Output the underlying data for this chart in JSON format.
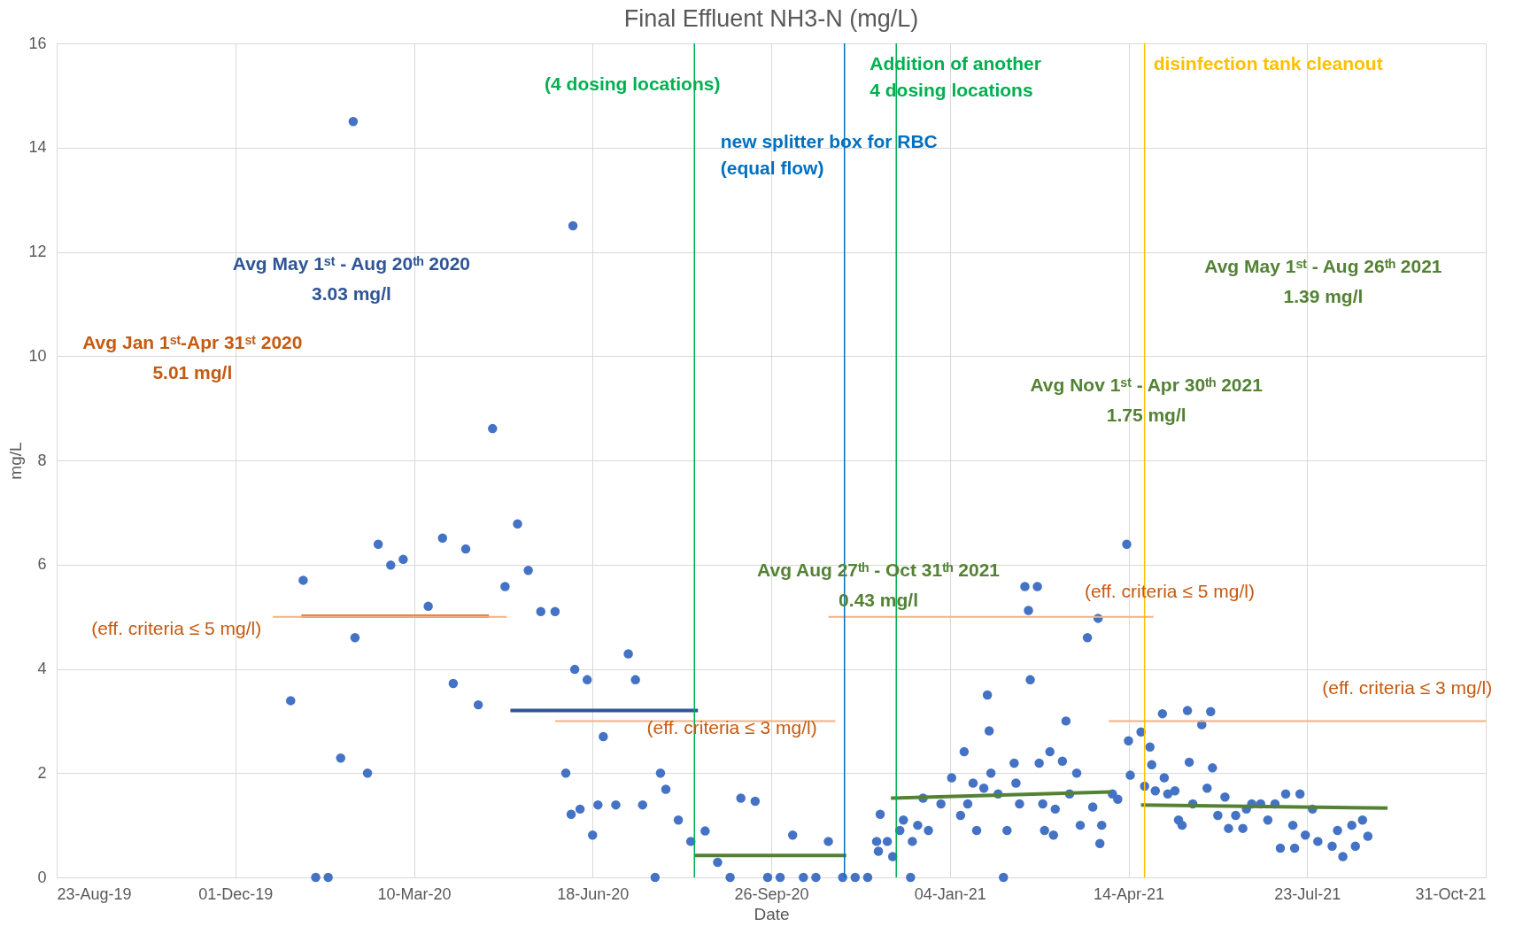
{
  "chart_data": {
    "type": "scatter",
    "title": "Final Effluent NH3-N (mg/L)",
    "xlabel": "Date",
    "ylabel": "mg/L",
    "xlim": [
      "2019-08-23",
      "2021-10-31"
    ],
    "xticks": [
      {
        "value": "2019-08-23",
        "label": "23-Aug-19"
      },
      {
        "value": "2019-12-01",
        "label": "01-Dec-19"
      },
      {
        "value": "2020-03-10",
        "label": "10-Mar-20"
      },
      {
        "value": "2020-06-18",
        "label": "18-Jun-20"
      },
      {
        "value": "2020-09-26",
        "label": "26-Sep-20"
      },
      {
        "value": "2021-01-04",
        "label": "04-Jan-21"
      },
      {
        "value": "2021-04-14",
        "label": "14-Apr-21"
      },
      {
        "value": "2021-07-23",
        "label": "23-Jul-21"
      },
      {
        "value": "2021-10-31",
        "label": "31-Oct-21"
      }
    ],
    "ylim": [
      0,
      16
    ],
    "yticks": [
      0,
      2,
      4,
      6,
      8,
      10,
      12,
      14,
      16
    ],
    "grid": true,
    "legend": false,
    "marker": "circle",
    "series": [
      {
        "color": "#4472c4",
        "x": [
          "2020-01-01",
          "2020-01-08",
          "2020-01-15",
          "2020-01-22",
          "2020-02-05",
          "2020-02-06",
          "2020-01-29",
          "2020-02-13",
          "2020-02-19",
          "2020-02-26",
          "2020-03-04",
          "2020-03-18",
          "2020-03-26",
          "2020-04-01",
          "2020-04-08",
          "2020-04-15",
          "2020-04-23",
          "2020-04-30",
          "2020-05-07",
          "2020-05-13",
          "2020-05-20",
          "2020-05-28",
          "2020-06-07",
          "2020-06-03",
          "2020-06-06",
          "2020-06-11",
          "2020-06-08",
          "2020-06-15",
          "2020-06-18",
          "2020-06-21",
          "2020-06-24",
          "2020-07-01",
          "2020-07-08",
          "2020-07-12",
          "2020-07-16",
          "2020-07-23",
          "2020-07-26",
          "2020-07-29",
          "2020-08-05",
          "2020-08-12",
          "2020-08-20",
          "2020-08-27",
          "2020-09-03",
          "2020-09-09",
          "2020-09-17",
          "2020-09-24",
          "2020-10-01",
          "2020-10-08",
          "2020-10-14",
          "2020-10-21",
          "2020-10-28",
          "2020-11-05",
          "2020-11-12",
          "2020-11-19",
          "2020-11-24",
          "2020-11-25",
          "2020-11-26",
          "2020-11-30",
          "2020-12-03",
          "2020-12-07",
          "2020-12-09",
          "2020-12-13",
          "2020-12-14",
          "2020-12-17",
          "2020-12-20",
          "2020-12-23",
          "2020-12-30",
          "2021-01-05",
          "2021-01-10",
          "2021-01-12",
          "2021-01-14",
          "2021-01-17",
          "2021-01-19",
          "2021-01-23",
          "2021-01-25",
          "2021-01-26",
          "2021-01-27",
          "2021-01-31",
          "2021-02-03",
          "2021-02-05",
          "2021-02-09",
          "2021-02-10",
          "2021-02-12",
          "2021-02-15",
          "2021-02-17",
          "2021-02-18",
          "2021-02-22",
          "2021-02-23",
          "2021-02-25",
          "2021-02-26",
          "2021-03-01",
          "2021-03-04",
          "2021-03-03",
          "2021-03-08",
          "2021-03-10",
          "2021-03-12",
          "2021-03-16",
          "2021-03-18",
          "2021-03-22",
          "2021-03-25",
          "2021-03-28",
          "2021-03-29",
          "2021-03-30",
          "2021-04-05",
          "2021-04-08",
          "2021-04-13",
          "2021-04-14",
          "2021-04-15",
          "2021-04-21",
          "2021-04-23",
          "2021-04-26",
          "2021-04-27",
          "2021-04-29",
          "2021-05-03",
          "2021-05-04",
          "2021-05-06",
          "2021-05-10",
          "2021-05-12",
          "2021-05-14",
          "2021-05-18",
          "2021-05-17",
          "2021-05-20",
          "2021-05-25",
          "2021-05-28",
          "2021-05-30",
          "2021-05-31",
          "2021-06-03",
          "2021-06-07",
          "2021-06-09",
          "2021-06-13",
          "2021-06-17",
          "2021-06-19",
          "2021-06-22",
          "2021-06-27",
          "2021-07-01",
          "2021-07-05",
          "2021-07-08",
          "2021-07-11",
          "2021-07-15",
          "2021-07-16",
          "2021-07-19",
          "2021-07-22",
          "2021-07-26",
          "2021-07-29",
          "2021-08-06",
          "2021-08-09",
          "2021-08-12",
          "2021-08-17",
          "2021-08-19",
          "2021-08-23",
          "2021-08-26"
        ],
        "values": [
          3.39,
          5.7,
          0,
          0,
          14.5,
          4.6,
          2.29,
          2.0,
          6.39,
          5.99,
          6.1,
          5.2,
          6.51,
          3.72,
          6.3,
          3.31,
          8.61,
          5.58,
          6.78,
          5.89,
          5.1,
          5.1,
          12.5,
          2.0,
          1.21,
          1.31,
          3.99,
          3.79,
          0.81,
          1.39,
          2.7,
          1.39,
          4.29,
          3.79,
          1.39,
          0,
          2.0,
          1.69,
          1.1,
          0.69,
          0.89,
          0.29,
          0,
          1.52,
          1.46,
          0,
          0,
          0.81,
          0,
          0,
          0.69,
          0,
          0,
          0,
          0.69,
          0.5,
          1.21,
          0.69,
          0.4,
          0.9,
          1.1,
          0,
          0.69,
          1.0,
          1.52,
          0.9,
          1.41,
          1.91,
          1.19,
          2.41,
          1.41,
          1.81,
          0.9,
          1.71,
          3.5,
          2.81,
          2.0,
          1.6,
          0,
          0.9,
          2.19,
          1.81,
          1.41,
          5.58,
          5.12,
          3.79,
          5.58,
          2.19,
          1.41,
          0.9,
          2.41,
          1.31,
          0.81,
          2.23,
          3.0,
          1.6,
          2.0,
          1.0,
          4.6,
          1.35,
          4.97,
          0.65,
          1.0,
          1.6,
          1.5,
          6.39,
          2.62,
          1.96,
          2.79,
          1.75,
          2.5,
          2.16,
          1.66,
          3.14,
          1.91,
          1.6,
          1.66,
          1.1,
          1.0,
          2.21,
          3.2,
          1.41,
          2.93,
          1.71,
          3.18,
          2.1,
          1.19,
          1.54,
          0.94,
          1.19,
          0.94,
          1.31,
          1.41,
          1.41,
          1.1,
          1.41,
          0.56,
          1.6,
          1.0,
          0.56,
          1.6,
          0.81,
          1.31,
          0.69,
          0.6,
          0.9,
          0.4,
          1.0,
          0.6,
          1.1,
          0.79
        ]
      },
      {
        "type": "line",
        "marker": "none",
        "line_style": "solid",
        "color": "#ed7d31",
        "x": [
          "2020-01-07",
          "2020-04-21"
        ],
        "values": [
          5.01,
          5.01
        ]
      },
      {
        "type": "line",
        "marker": "none",
        "line_style": "solid",
        "color": "#f4b183",
        "x": [
          "2019-12-22",
          "2020-05-01"
        ],
        "values": [
          5,
          5
        ]
      },
      {
        "type": "line",
        "marker": "none",
        "line_style": "solid",
        "color": "#2f5597",
        "x": [
          "2020-05-03",
          "2020-08-16"
        ],
        "values": [
          3.2,
          3.2
        ]
      },
      {
        "type": "line",
        "marker": "none",
        "line_style": "solid",
        "color": "#f4b183",
        "x": [
          "2020-05-28",
          "2020-11-01"
        ],
        "values": [
          3,
          3
        ]
      },
      {
        "type": "line",
        "marker": "none",
        "line_style": "solid",
        "color": "#548235",
        "x": [
          "2020-08-14",
          "2020-11-07"
        ],
        "values": [
          0.42,
          0.42
        ]
      },
      {
        "type": "line",
        "marker": "none",
        "line_style": "solid",
        "color": "#f4b183",
        "x": [
          "2020-10-28",
          "2021-04-28"
        ],
        "values": [
          5,
          5
        ]
      },
      {
        "type": "line",
        "marker": "none",
        "line_style": "solid",
        "color": "#548235",
        "x": [
          "2020-12-02",
          "2021-04-04"
        ],
        "values": [
          1.52,
          1.64
        ]
      },
      {
        "type": "line",
        "marker": "none",
        "line_style": "solid",
        "color": "#f4b183",
        "x": [
          "2021-04-03",
          "2021-10-31"
        ],
        "values": [
          3,
          3
        ]
      },
      {
        "type": "line",
        "marker": "none",
        "line_style": "solid",
        "color": "#548235",
        "x": [
          "2021-04-21",
          "2021-09-06"
        ],
        "values": [
          1.39,
          1.33
        ]
      }
    ],
    "ref_lines": [
      {
        "axis": "x",
        "value": "2020-08-14",
        "label": "(4 dosing locations)",
        "color": "#00b050"
      },
      {
        "axis": "x",
        "value": "2020-11-06",
        "label": "new splitter box for RBC\n(equal flow)",
        "color": "#0070c0"
      },
      {
        "axis": "x",
        "value": "2020-12-05",
        "label": "Addition of another\n4 dosing locations",
        "color": "#00b050"
      },
      {
        "axis": "x",
        "value": "2021-04-23",
        "label": "disinfection tank cleanout",
        "color": "#ffc000"
      }
    ],
    "annotations": [
      "Avg Jan 1ˢᵗ-Apr 31ˢᵗ 2020\n5.01 mg/l",
      "Avg May 1ˢᵗ - Aug 20ᵗʰ 2020\n3.03 mg/l",
      "Avg Aug 27ᵗʰ - Oct 31ᵗʰ 2021\n0.43 mg/l",
      "Avg Nov 1ˢᵗ - Apr 30ᵗʰ 2021\n1.75 mg/l",
      "Avg May 1ˢᵗ - Aug 26ᵗʰ 2021\n1.39 mg/l",
      "(eff. criteria ≤ 5 mg/l)",
      "(eff. criteria ≤ 3 mg/l)",
      "(eff. criteria ≤ 5 mg/l)",
      "(eff. criteria ≤ 3 mg/l)"
    ]
  }
}
